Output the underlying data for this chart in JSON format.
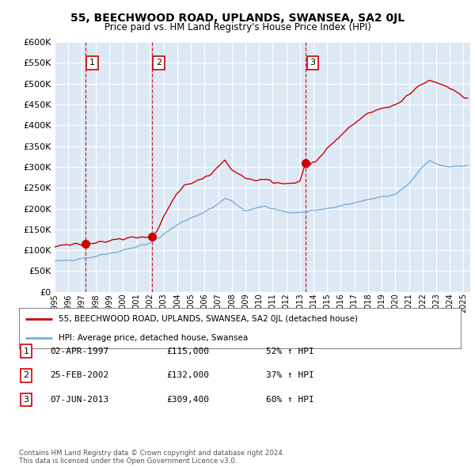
{
  "title": "55, BEECHWOOD ROAD, UPLANDS, SWANSEA, SA2 0JL",
  "subtitle": "Price paid vs. HM Land Registry's House Price Index (HPI)",
  "yticks": [
    0,
    50000,
    100000,
    150000,
    200000,
    250000,
    300000,
    350000,
    400000,
    450000,
    500000,
    550000,
    600000
  ],
  "xlim_start": 1995.0,
  "xlim_end": 2025.5,
  "ylim": [
    0,
    600000
  ],
  "plot_bg_color": "#dce9f5",
  "grid_color": "#ffffff",
  "red_line_color": "#cc0000",
  "blue_line_color": "#7bafd4",
  "sale_marker_color": "#cc0000",
  "dashed_line_color": "#cc0000",
  "purchases": [
    {
      "date_num": 1997.25,
      "price": 115000,
      "label": "1"
    },
    {
      "date_num": 2002.15,
      "price": 132000,
      "label": "2"
    },
    {
      "date_num": 2013.43,
      "price": 309400,
      "label": "3"
    }
  ],
  "legend_label_red": "55, BEECHWOOD ROAD, UPLANDS, SWANSEA, SA2 0JL (detached house)",
  "legend_label_blue": "HPI: Average price, detached house, Swansea",
  "footer_text": "Contains HM Land Registry data © Crown copyright and database right 2024.\nThis data is licensed under the Open Government Licence v3.0.",
  "table_entries": [
    {
      "label": "1",
      "date": "02-APR-1997",
      "price": "£115,000",
      "change": "52% ↑ HPI"
    },
    {
      "label": "2",
      "date": "25-FEB-2002",
      "price": "£132,000",
      "change": "37% ↑ HPI"
    },
    {
      "label": "3",
      "date": "07-JUN-2013",
      "price": "£309,400",
      "change": "60% ↑ HPI"
    }
  ],
  "xtick_years": [
    1995,
    1996,
    1997,
    1998,
    1999,
    2000,
    2001,
    2002,
    2003,
    2004,
    2005,
    2006,
    2007,
    2008,
    2009,
    2010,
    2011,
    2012,
    2013,
    2014,
    2015,
    2016,
    2017,
    2018,
    2019,
    2020,
    2021,
    2022,
    2023,
    2024,
    2025
  ],
  "hpi_anchors": [
    [
      1995.0,
      73000
    ],
    [
      1996.0,
      76000
    ],
    [
      1997.0,
      80000
    ],
    [
      1998.0,
      85000
    ],
    [
      1999.0,
      92000
    ],
    [
      2000.0,
      100000
    ],
    [
      2001.0,
      108000
    ],
    [
      2002.0,
      117000
    ],
    [
      2003.0,
      138000
    ],
    [
      2004.0,
      162000
    ],
    [
      2005.0,
      178000
    ],
    [
      2006.0,
      192000
    ],
    [
      2007.0,
      210000
    ],
    [
      2007.5,
      225000
    ],
    [
      2008.0,
      218000
    ],
    [
      2008.5,
      205000
    ],
    [
      2009.0,
      195000
    ],
    [
      2009.5,
      198000
    ],
    [
      2010.0,
      202000
    ],
    [
      2010.5,
      205000
    ],
    [
      2011.0,
      200000
    ],
    [
      2011.5,
      196000
    ],
    [
      2012.0,
      192000
    ],
    [
      2012.5,
      190000
    ],
    [
      2013.0,
      191000
    ],
    [
      2013.5,
      192000
    ],
    [
      2014.0,
      196000
    ],
    [
      2015.0,
      200000
    ],
    [
      2016.0,
      206000
    ],
    [
      2017.0,
      214000
    ],
    [
      2018.0,
      222000
    ],
    [
      2019.0,
      228000
    ],
    [
      2020.0,
      234000
    ],
    [
      2021.0,
      260000
    ],
    [
      2022.0,
      300000
    ],
    [
      2022.5,
      315000
    ],
    [
      2023.0,
      308000
    ],
    [
      2023.5,
      302000
    ],
    [
      2024.0,
      300000
    ],
    [
      2025.0,
      302000
    ],
    [
      2025.3,
      305000
    ]
  ],
  "red_anchors": [
    [
      1995.0,
      108000
    ],
    [
      1995.5,
      112000
    ],
    [
      1996.0,
      112000
    ],
    [
      1996.5,
      115000
    ],
    [
      1997.0,
      113000
    ],
    [
      1997.25,
      115000
    ],
    [
      1997.5,
      116000
    ],
    [
      1998.0,
      118000
    ],
    [
      1998.5,
      120000
    ],
    [
      1999.0,
      122000
    ],
    [
      1999.5,
      125000
    ],
    [
      2000.0,
      128000
    ],
    [
      2000.5,
      130000
    ],
    [
      2001.0,
      132000
    ],
    [
      2001.5,
      133000
    ],
    [
      2002.0,
      131000
    ],
    [
      2002.15,
      132000
    ],
    [
      2002.5,
      145000
    ],
    [
      2003.0,
      180000
    ],
    [
      2003.5,
      210000
    ],
    [
      2004.0,
      238000
    ],
    [
      2004.5,
      258000
    ],
    [
      2005.0,
      260000
    ],
    [
      2005.5,
      268000
    ],
    [
      2006.0,
      275000
    ],
    [
      2006.5,
      282000
    ],
    [
      2007.0,
      300000
    ],
    [
      2007.5,
      315000
    ],
    [
      2008.0,
      295000
    ],
    [
      2008.5,
      285000
    ],
    [
      2009.0,
      275000
    ],
    [
      2009.5,
      270000
    ],
    [
      2010.0,
      268000
    ],
    [
      2010.5,
      272000
    ],
    [
      2011.0,
      265000
    ],
    [
      2011.5,
      262000
    ],
    [
      2012.0,
      258000
    ],
    [
      2012.5,
      260000
    ],
    [
      2013.0,
      265000
    ],
    [
      2013.43,
      309400
    ],
    [
      2013.5,
      295000
    ],
    [
      2014.0,
      310000
    ],
    [
      2014.5,
      325000
    ],
    [
      2015.0,
      345000
    ],
    [
      2015.5,
      360000
    ],
    [
      2016.0,
      375000
    ],
    [
      2016.5,
      392000
    ],
    [
      2017.0,
      405000
    ],
    [
      2017.5,
      418000
    ],
    [
      2018.0,
      428000
    ],
    [
      2018.5,
      435000
    ],
    [
      2019.0,
      440000
    ],
    [
      2019.5,
      445000
    ],
    [
      2020.0,
      448000
    ],
    [
      2020.5,
      460000
    ],
    [
      2021.0,
      475000
    ],
    [
      2021.5,
      488000
    ],
    [
      2022.0,
      500000
    ],
    [
      2022.5,
      508000
    ],
    [
      2023.0,
      502000
    ],
    [
      2023.5,
      495000
    ],
    [
      2024.0,
      490000
    ],
    [
      2024.5,
      478000
    ],
    [
      2025.0,
      468000
    ],
    [
      2025.3,
      462000
    ]
  ]
}
